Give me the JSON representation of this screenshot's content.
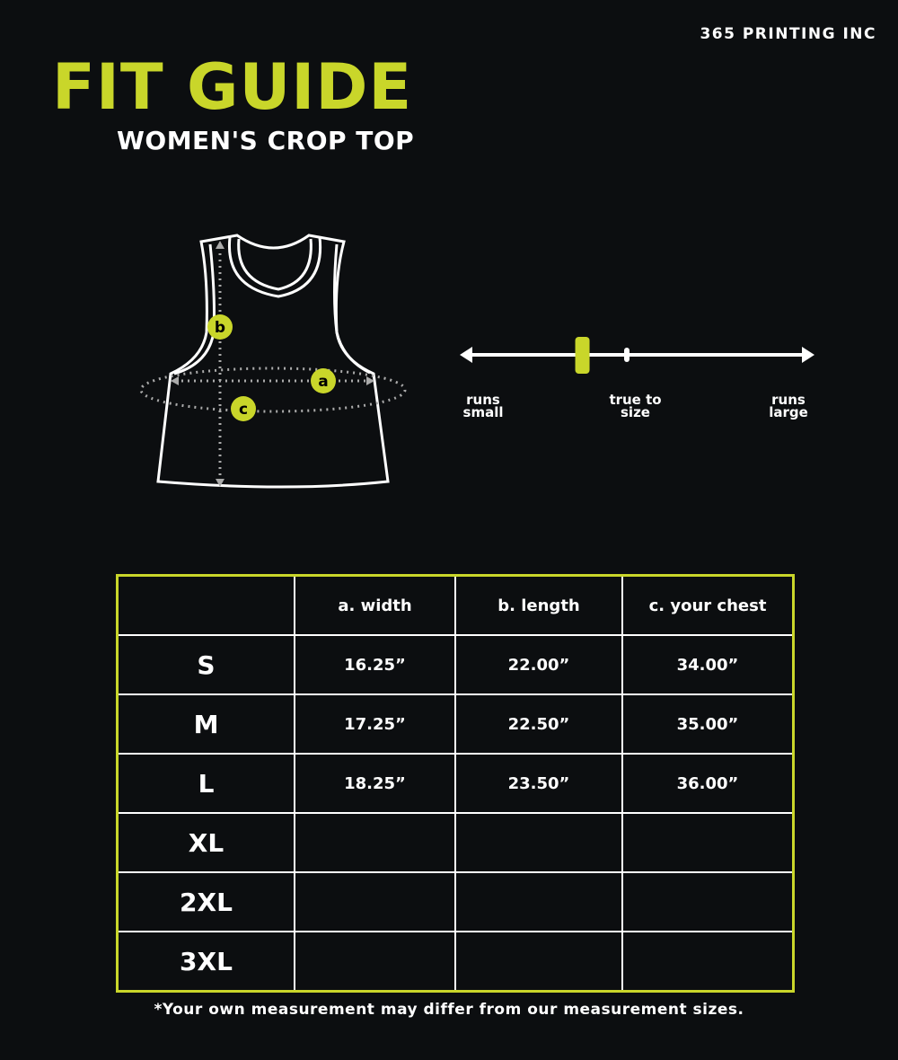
{
  "brand": "365 PRINTING INC",
  "title": "FIT GUIDE",
  "subtitle": "WOMEN'S CROP TOP",
  "colors": {
    "accent": "#c9d62a",
    "background": "#0c0e10",
    "line": "#ffffff"
  },
  "diagram": {
    "labels": {
      "a": "a",
      "b": "b",
      "c": "c"
    }
  },
  "fit_scale": {
    "labels": {
      "small": "runs small",
      "true": "true to size",
      "large": "runs large"
    },
    "marker_position": 0.34
  },
  "table": {
    "headers": [
      "",
      "a. width",
      "b. length",
      "c. your chest"
    ],
    "rows": [
      {
        "size": "S",
        "values": [
          "16.25”",
          "22.00”",
          "34.00”"
        ]
      },
      {
        "size": "M",
        "values": [
          "17.25”",
          "22.50”",
          "35.00”"
        ]
      },
      {
        "size": "L",
        "values": [
          "18.25”",
          "23.50”",
          "36.00”"
        ]
      },
      {
        "size": "XL",
        "values": [
          "",
          "",
          ""
        ]
      },
      {
        "size": "2XL",
        "values": [
          "",
          "",
          ""
        ]
      },
      {
        "size": "3XL",
        "values": [
          "",
          "",
          ""
        ]
      }
    ]
  },
  "note": "*Your own measurement may differ from our measurement sizes."
}
